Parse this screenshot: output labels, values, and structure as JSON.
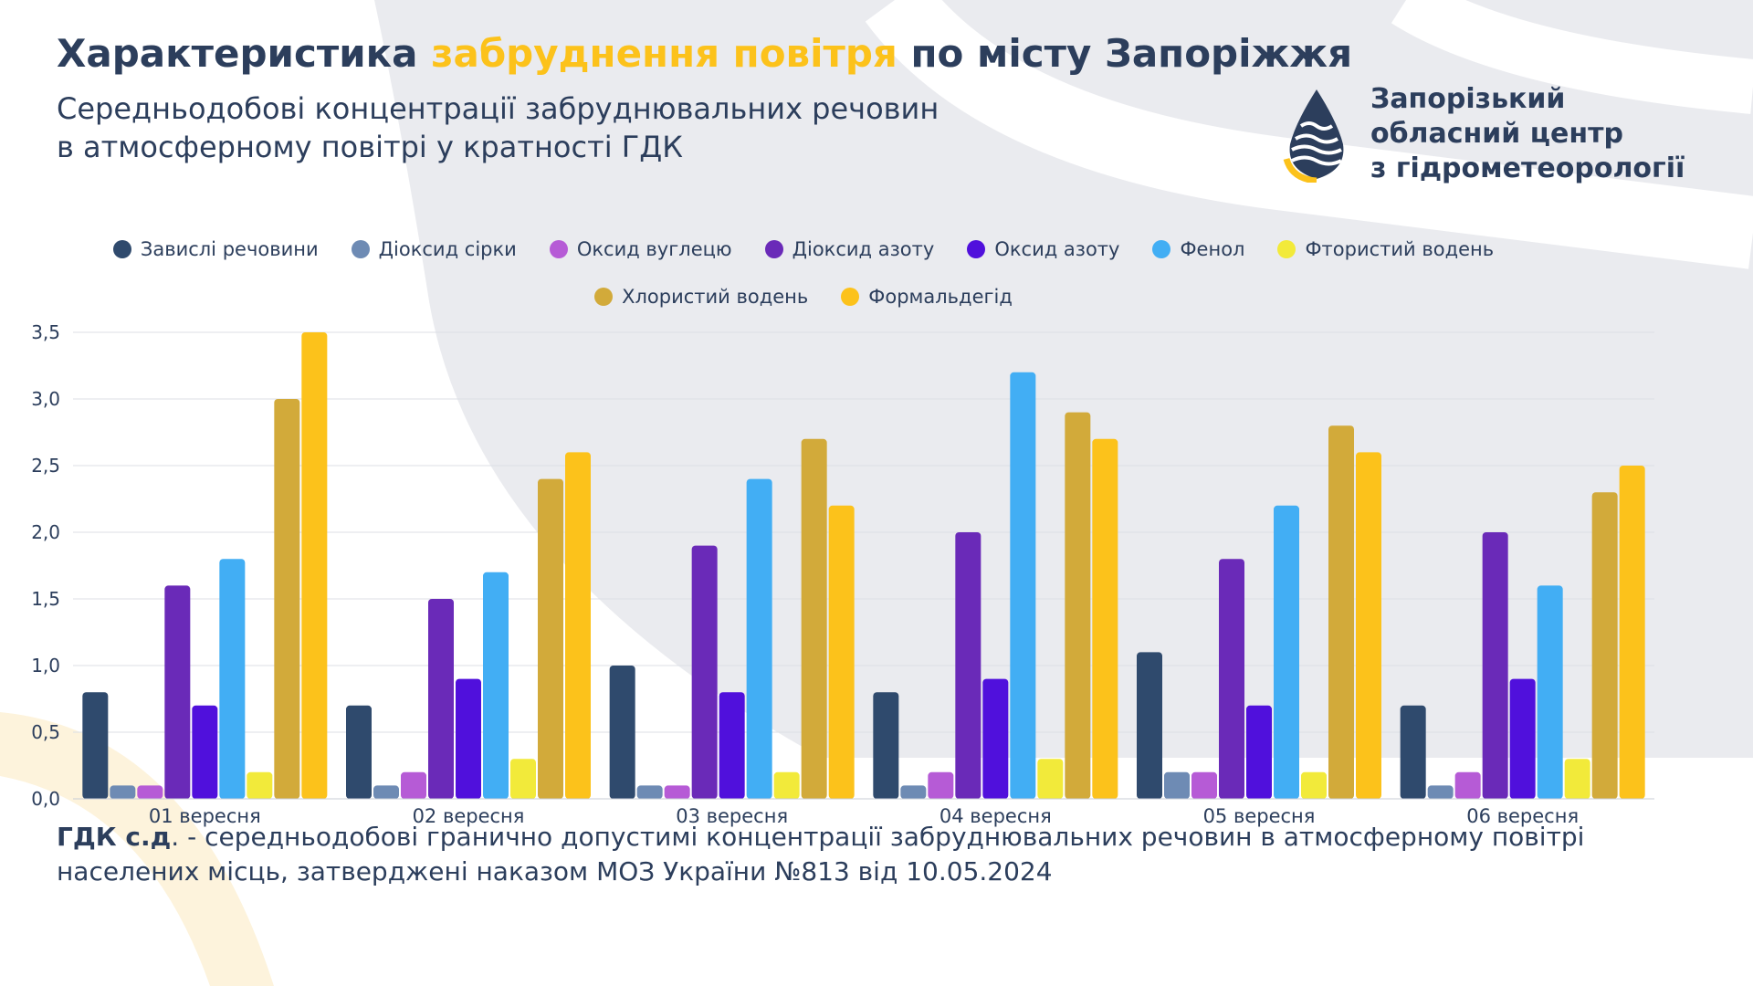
{
  "header": {
    "title_part1": "Характеристика ",
    "title_accent": "забруднення повітря",
    "title_part2": " по місту Запоріжжя",
    "subtitle_line1": "Середньодобові концентрації забруднювальних речовин",
    "subtitle_line2": "в атмосферному повітрі у кратності ГДК"
  },
  "logo": {
    "line1": "Запорізький",
    "line2": "обласний центр",
    "line3": "з гідрометеорології",
    "icon": "drop-waves-icon"
  },
  "colors": {
    "title": "#2c3e5c",
    "accent": "#fcc21b"
  },
  "chart_data": {
    "type": "bar",
    "title": "",
    "xlabel": "",
    "ylabel": "",
    "ylim": [
      0,
      3.5
    ],
    "y_ticks": [
      "0,0",
      "0,5",
      "1,0",
      "1,5",
      "2,0",
      "2,5",
      "3,0",
      "3,5"
    ],
    "grid": true,
    "legend_position": "top-center",
    "categories": [
      "01 вересня",
      "02 вересня",
      "03 вересня",
      "04 вересня",
      "05 вересня",
      "06 вересня"
    ],
    "series": [
      {
        "name": "Завислі речовини",
        "color": "#2f4a6d",
        "values": [
          0.8,
          0.7,
          1.0,
          0.8,
          1.1,
          0.7
        ]
      },
      {
        "name": "Діоксид сірки",
        "color": "#6e8bb4",
        "values": [
          0.1,
          0.1,
          0.1,
          0.1,
          0.2,
          0.1
        ]
      },
      {
        "name": "Оксид вуглецю",
        "color": "#b65bd6",
        "values": [
          0.1,
          0.2,
          0.1,
          0.2,
          0.2,
          0.2
        ]
      },
      {
        "name": "Діоксид азоту",
        "color": "#6a2ab8",
        "values": [
          1.6,
          1.5,
          1.9,
          2.0,
          1.8,
          2.0
        ]
      },
      {
        "name": "Оксид азоту",
        "color": "#5010dc",
        "values": [
          0.7,
          0.9,
          0.8,
          0.9,
          0.7,
          0.9
        ]
      },
      {
        "name": "Фенол",
        "color": "#42aef4",
        "values": [
          1.8,
          1.7,
          2.4,
          3.2,
          2.2,
          1.6
        ]
      },
      {
        "name": "Фтористий водень",
        "color": "#f2ea3a",
        "values": [
          0.2,
          0.3,
          0.2,
          0.3,
          0.2,
          0.3
        ]
      },
      {
        "name": "Хлористий водень",
        "color": "#d2aa3a",
        "values": [
          3.0,
          2.4,
          2.7,
          2.9,
          2.8,
          2.3
        ]
      },
      {
        "name": "Формальдегід",
        "color": "#fcc21b",
        "values": [
          3.5,
          2.6,
          2.2,
          2.7,
          2.6,
          2.5
        ]
      }
    ]
  },
  "footnote": {
    "term": "ГДК с.д",
    "text": ". - середньодобові гранично допустимі концентрації забруднювальних речовин в атмосферному повітрі населених місць, затверджені наказом МОЗ України №813 від 10.05.2024"
  }
}
